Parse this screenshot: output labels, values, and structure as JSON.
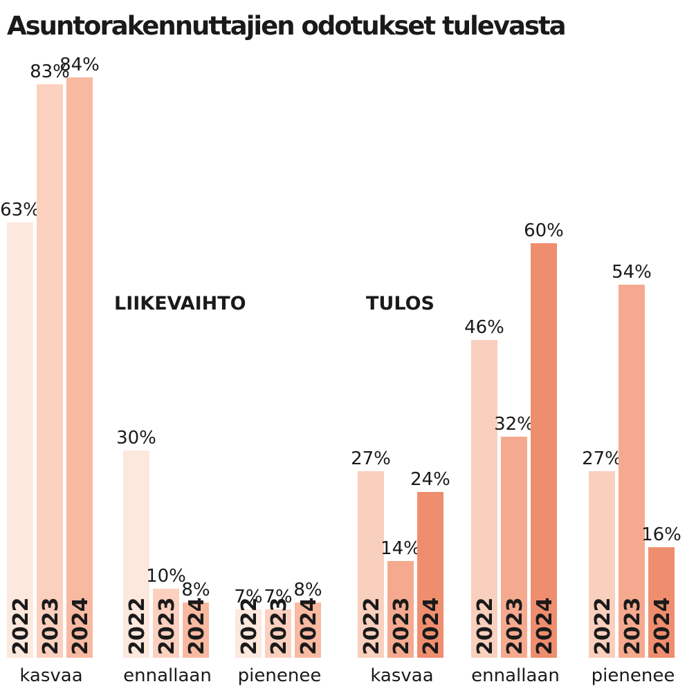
{
  "chart_data": {
    "type": "bar",
    "title": "Asuntorakennuttajien odotukset tulevasta",
    "ylim": [
      0,
      100
    ],
    "years": [
      "2022",
      "2023",
      "2024"
    ],
    "groups": [
      {
        "name": "LIIKEVAIHTO",
        "categories": [
          {
            "label": "kasvaa",
            "values": [
              63,
              83,
              84
            ],
            "labels": [
              "63%",
              "83%",
              "84%"
            ]
          },
          {
            "label": "ennallaan",
            "values": [
              30,
              10,
              8
            ],
            "labels": [
              "30%",
              "10%",
              "8%"
            ]
          },
          {
            "label": "pienenee",
            "values": [
              7,
              7,
              8
            ],
            "labels": [
              "7%",
              "7%",
              "8%"
            ]
          }
        ],
        "colors": [
          "#fde8de",
          "#fbd0bf",
          "#f8b9a1"
        ]
      },
      {
        "name": "TULOS",
        "categories": [
          {
            "label": "kasvaa",
            "values": [
              27,
              14,
              24
            ],
            "labels": [
              "27%",
              "14%",
              "24%"
            ]
          },
          {
            "label": "ennallaan",
            "values": [
              46,
              32,
              60
            ],
            "labels": [
              "46%",
              "32%",
              "60%"
            ]
          },
          {
            "label": "pienenee",
            "values": [
              27,
              54,
              16
            ],
            "labels": [
              "27%",
              "54%",
              "16%"
            ]
          }
        ],
        "colors": [
          "#f9cfbe",
          "#f5aa8f",
          "#ef8e6e"
        ]
      }
    ]
  }
}
